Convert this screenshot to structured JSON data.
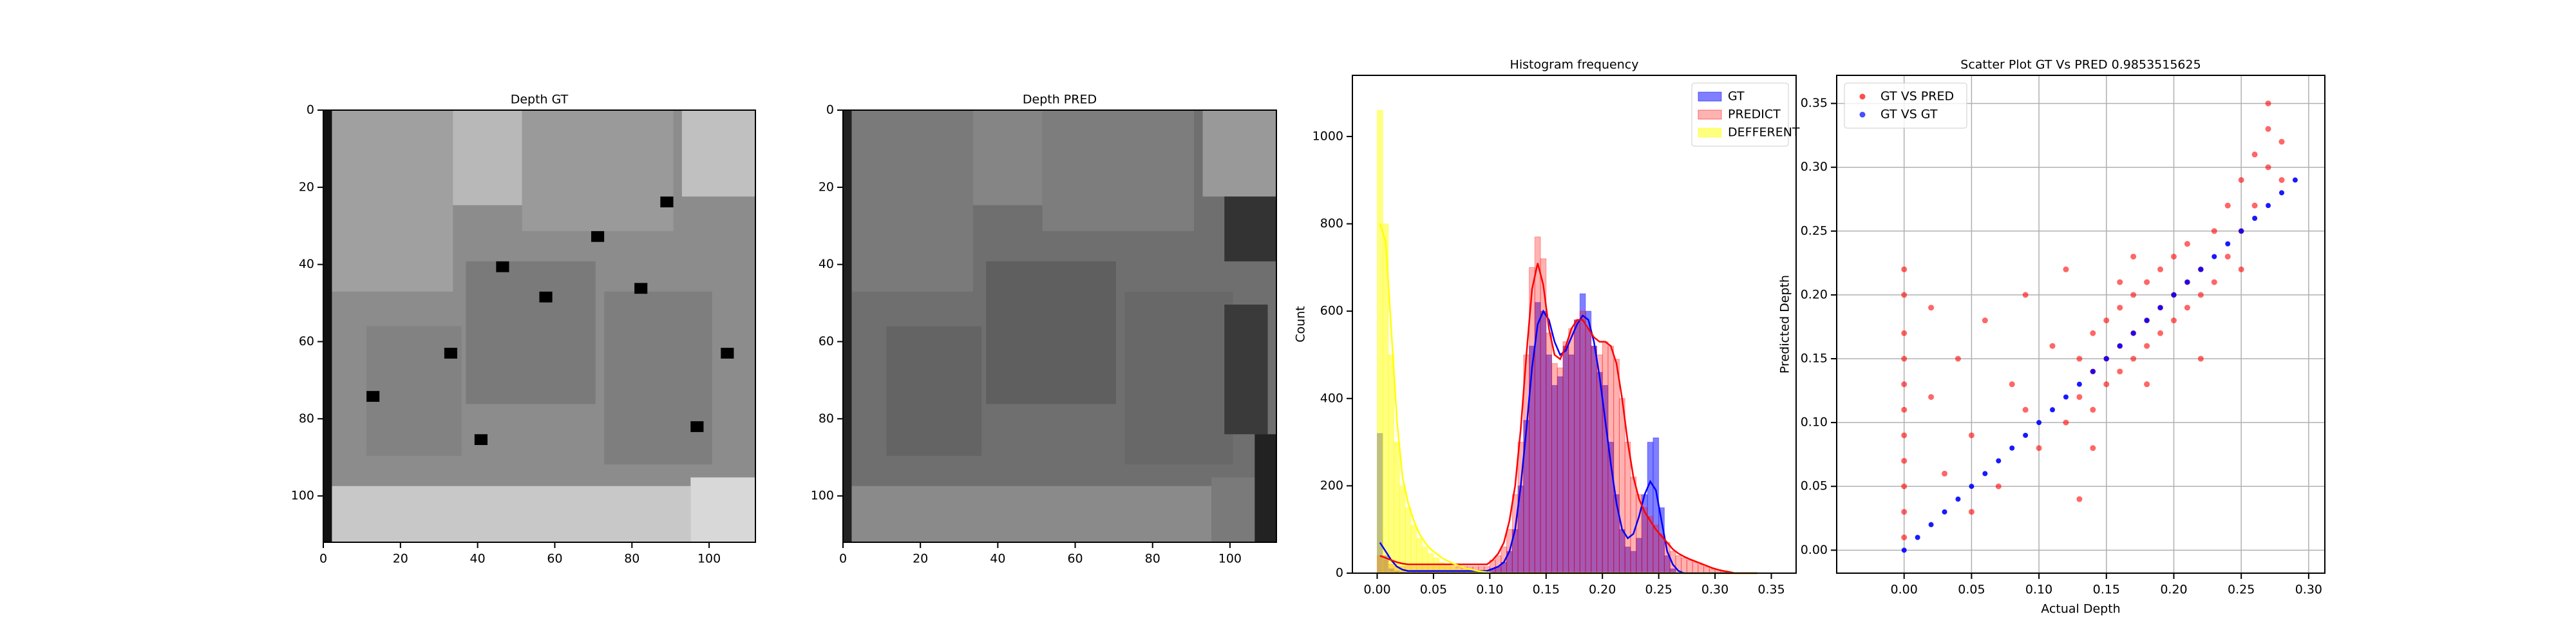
{
  "chart_data": [
    {
      "type": "image",
      "title": "Depth GT",
      "xlim": [
        0,
        112
      ],
      "ylim": [
        112,
        0
      ],
      "xticks": [
        0,
        20,
        40,
        60,
        80,
        100
      ],
      "yticks": [
        0,
        20,
        40,
        60,
        80,
        100
      ]
    },
    {
      "type": "image",
      "title": "Depth PRED",
      "xlim": [
        0,
        112
      ],
      "ylim": [
        112,
        0
      ],
      "xticks": [
        0,
        20,
        40,
        60,
        80,
        100
      ],
      "yticks": [
        0,
        20,
        40,
        60,
        80,
        100
      ]
    },
    {
      "type": "histogram",
      "title": "Histogram frequency",
      "y_label": "Count",
      "legend": "upper right",
      "xlim": [
        -0.022,
        0.372
      ],
      "ylim": [
        0,
        1140
      ],
      "xticks": [
        {
          "value": 0,
          "label": "0.00"
        },
        {
          "value": 0.05,
          "label": "0.05"
        },
        {
          "value": 0.1,
          "label": "0.10"
        },
        {
          "value": 0.15,
          "label": "0.15"
        },
        {
          "value": 0.2,
          "label": "0.20"
        },
        {
          "value": 0.25,
          "label": "0.25"
        },
        {
          "value": 0.3,
          "label": "0.30"
        },
        {
          "value": 0.35,
          "label": "0.35"
        }
      ],
      "yticks": [
        0,
        200,
        400,
        600,
        800,
        1000
      ],
      "bins": [
        0,
        0.005,
        0.01,
        0.015,
        0.02,
        0.025,
        0.03,
        0.035,
        0.04,
        0.045,
        0.05,
        0.055,
        0.06,
        0.065,
        0.07,
        0.075,
        0.08,
        0.085,
        0.09,
        0.095,
        0.1,
        0.105,
        0.11,
        0.115,
        0.12,
        0.125,
        0.13,
        0.135,
        0.14,
        0.145,
        0.15,
        0.155,
        0.16,
        0.165,
        0.17,
        0.175,
        0.18,
        0.185,
        0.19,
        0.195,
        0.2,
        0.205,
        0.21,
        0.215,
        0.22,
        0.225,
        0.23,
        0.235,
        0.24,
        0.245,
        0.25,
        0.255,
        0.26,
        0.265,
        0.27,
        0.275,
        0.28,
        0.285,
        0.29,
        0.295,
        0.3,
        0.305,
        0.31,
        0.315,
        0.32,
        0.325,
        0.33,
        0.335,
        0.34
      ],
      "series": [
        {
          "name": "GT",
          "color": "#0000ff",
          "values": [
            320,
            40,
            10,
            5,
            3,
            3,
            3,
            3,
            3,
            3,
            3,
            3,
            3,
            3,
            3,
            3,
            3,
            3,
            3,
            3,
            10,
            15,
            25,
            50,
            100,
            200,
            350,
            520,
            620,
            600,
            500,
            430,
            450,
            520,
            500,
            580,
            640,
            600,
            520,
            460,
            430,
            300,
            180,
            100,
            60,
            50,
            80,
            180,
            300,
            310,
            150,
            40,
            10,
            0,
            0,
            0,
            0,
            0,
            0,
            0,
            0,
            0,
            0,
            0,
            0,
            0,
            0,
            0
          ],
          "kde": [
            70,
            50,
            30,
            15,
            8,
            5,
            5,
            5,
            5,
            5,
            5,
            5,
            5,
            5,
            5,
            5,
            5,
            5,
            5,
            5,
            10,
            15,
            25,
            50,
            100,
            200,
            330,
            470,
            570,
            600,
            580,
            530,
            500,
            510,
            540,
            570,
            590,
            580,
            530,
            450,
            350,
            250,
            160,
            100,
            80,
            90,
            130,
            180,
            210,
            190,
            120,
            50,
            20,
            5,
            0,
            0,
            0,
            0,
            0,
            0,
            0,
            0,
            0,
            0,
            0,
            0,
            0,
            0
          ]
        },
        {
          "name": "PREDICT",
          "color": "#ff0000",
          "values": [
            40,
            30,
            20,
            15,
            15,
            15,
            15,
            15,
            15,
            15,
            15,
            15,
            15,
            15,
            15,
            15,
            15,
            15,
            15,
            15,
            30,
            40,
            60,
            100,
            180,
            300,
            500,
            700,
            770,
            720,
            550,
            480,
            470,
            530,
            560,
            580,
            600,
            560,
            520,
            500,
            530,
            520,
            490,
            400,
            300,
            220,
            180,
            150,
            130,
            110,
            90,
            70,
            50,
            40,
            35,
            30,
            25,
            20,
            15,
            10,
            8,
            5,
            3,
            0,
            0,
            0,
            0,
            0
          ],
          "kde": [
            40,
            35,
            30,
            25,
            22,
            20,
            20,
            20,
            20,
            20,
            20,
            20,
            20,
            20,
            20,
            20,
            20,
            20,
            20,
            20,
            30,
            45,
            70,
            120,
            200,
            330,
            500,
            650,
            710,
            660,
            560,
            500,
            490,
            520,
            560,
            580,
            580,
            560,
            540,
            530,
            530,
            520,
            480,
            400,
            300,
            220,
            170,
            140,
            120,
            100,
            85,
            70,
            55,
            45,
            38,
            32,
            27,
            22,
            17,
            12,
            8,
            5,
            3,
            0,
            0,
            0,
            0,
            0
          ]
        },
        {
          "name": "DEFFERENT",
          "color": "#ffff00",
          "values": [
            1060,
            800,
            500,
            300,
            200,
            150,
            110,
            80,
            60,
            45,
            35,
            25,
            20,
            15,
            10,
            8,
            5,
            4,
            3,
            2,
            0,
            0,
            0,
            0,
            0,
            0,
            0,
            0,
            0,
            0,
            0,
            0,
            0,
            0,
            0,
            0,
            0,
            0,
            0,
            0,
            0,
            0,
            0,
            0,
            0,
            0,
            0,
            0,
            0,
            0,
            0,
            0,
            0,
            0,
            0,
            0,
            0,
            0,
            0,
            0,
            0,
            0,
            0,
            0,
            0,
            0,
            0,
            0
          ],
          "kde": [
            800,
            760,
            560,
            350,
            220,
            160,
            120,
            90,
            70,
            55,
            45,
            35,
            28,
            22,
            17,
            12,
            9,
            6,
            4,
            2,
            0,
            0,
            0,
            0,
            0,
            0,
            0,
            0,
            0,
            0,
            0,
            0,
            0,
            0,
            0,
            0,
            0,
            0,
            0,
            0,
            0,
            0,
            0,
            0,
            0,
            0,
            0,
            0,
            0,
            0,
            0,
            0,
            0,
            0,
            0,
            0,
            0,
            0,
            0,
            0,
            0,
            0,
            0,
            0,
            0,
            0,
            0,
            0
          ]
        }
      ]
    },
    {
      "type": "scatter",
      "title": "Scatter Plot GT Vs PRED 0.9853515625",
      "x_label": "Actual Depth",
      "y_label": "Predicted Depth",
      "legend": "upper left",
      "grid": true,
      "xlim": [
        -0.05,
        0.312
      ],
      "ylim": [
        -0.018,
        0.372
      ],
      "xticks": [
        {
          "value": 0,
          "label": "0.00"
        },
        {
          "value": 0.05,
          "label": "0.05"
        },
        {
          "value": 0.1,
          "label": "0.10"
        },
        {
          "value": 0.15,
          "label": "0.15"
        },
        {
          "value": 0.2,
          "label": "0.20"
        },
        {
          "value": 0.25,
          "label": "0.25"
        },
        {
          "value": 0.3,
          "label": "0.30"
        }
      ],
      "yticks": [
        {
          "value": 0,
          "label": "0.00"
        },
        {
          "value": 0.05,
          "label": "0.05"
        },
        {
          "value": 0.1,
          "label": "0.10"
        },
        {
          "value": 0.15,
          "label": "0.15"
        },
        {
          "value": 0.2,
          "label": "0.20"
        },
        {
          "value": 0.25,
          "label": "0.25"
        },
        {
          "value": 0.3,
          "label": "0.30"
        },
        {
          "value": 0.35,
          "label": "0.35"
        }
      ],
      "series": [
        {
          "name": "GT VS PRED",
          "color": "#ff0000",
          "x": [
            0,
            0,
            0,
            0,
            0,
            0,
            0,
            0,
            0,
            0,
            0,
            0.02,
            0.03,
            0.04,
            0.05,
            0.06,
            0.07,
            0.08,
            0.09,
            0.1,
            0.11,
            0.12,
            0.12,
            0.02,
            0.05,
            0.09,
            0.13,
            0.13,
            0.14,
            0.14,
            0.14,
            0.15,
            0.15,
            0.15,
            0.16,
            0.16,
            0.16,
            0.17,
            0.17,
            0.17,
            0.18,
            0.18,
            0.18,
            0.19,
            0.19,
            0.19,
            0.2,
            0.2,
            0.2,
            0.21,
            0.21,
            0.21,
            0.22,
            0.22,
            0.16,
            0.18,
            0.14,
            0.13,
            0.17,
            0.23,
            0.23,
            0.24,
            0.24,
            0.25,
            0.25,
            0.26,
            0.26,
            0.27,
            0.27,
            0.28,
            0.28,
            0.25,
            0.27,
            0.22
          ],
          "values": [
            0.01,
            0.03,
            0.05,
            0.07,
            0.09,
            0.11,
            0.13,
            0.15,
            0.17,
            0.2,
            0.22,
            0.12,
            0.06,
            0.15,
            0.09,
            0.18,
            0.05,
            0.13,
            0.2,
            0.08,
            0.16,
            0.1,
            0.22,
            0.19,
            0.03,
            0.11,
            0.12,
            0.15,
            0.14,
            0.17,
            0.11,
            0.15,
            0.18,
            0.13,
            0.16,
            0.19,
            0.14,
            0.17,
            0.2,
            0.15,
            0.18,
            0.21,
            0.16,
            0.19,
            0.22,
            0.17,
            0.2,
            0.23,
            0.18,
            0.21,
            0.24,
            0.19,
            0.22,
            0.2,
            0.21,
            0.13,
            0.08,
            0.04,
            0.23,
            0.21,
            0.25,
            0.23,
            0.27,
            0.25,
            0.29,
            0.27,
            0.31,
            0.3,
            0.33,
            0.29,
            0.32,
            0.22,
            0.35,
            0.15
          ]
        },
        {
          "name": "GT VS GT",
          "color": "#0000ff",
          "x": [
            0,
            0.01,
            0.02,
            0.03,
            0.04,
            0.05,
            0.06,
            0.07,
            0.08,
            0.09,
            0.1,
            0.11,
            0.12,
            0.13,
            0.14,
            0.15,
            0.16,
            0.17,
            0.18,
            0.19,
            0.2,
            0.21,
            0.22,
            0.23,
            0.24,
            0.25,
            0.26,
            0.27,
            0.28,
            0.29
          ],
          "values": [
            0,
            0.01,
            0.02,
            0.03,
            0.04,
            0.05,
            0.06,
            0.07,
            0.08,
            0.09,
            0.1,
            0.11,
            0.12,
            0.13,
            0.14,
            0.15,
            0.16,
            0.17,
            0.18,
            0.19,
            0.2,
            0.21,
            0.22,
            0.23,
            0.24,
            0.25,
            0.26,
            0.27,
            0.28,
            0.29
          ]
        }
      ]
    }
  ]
}
